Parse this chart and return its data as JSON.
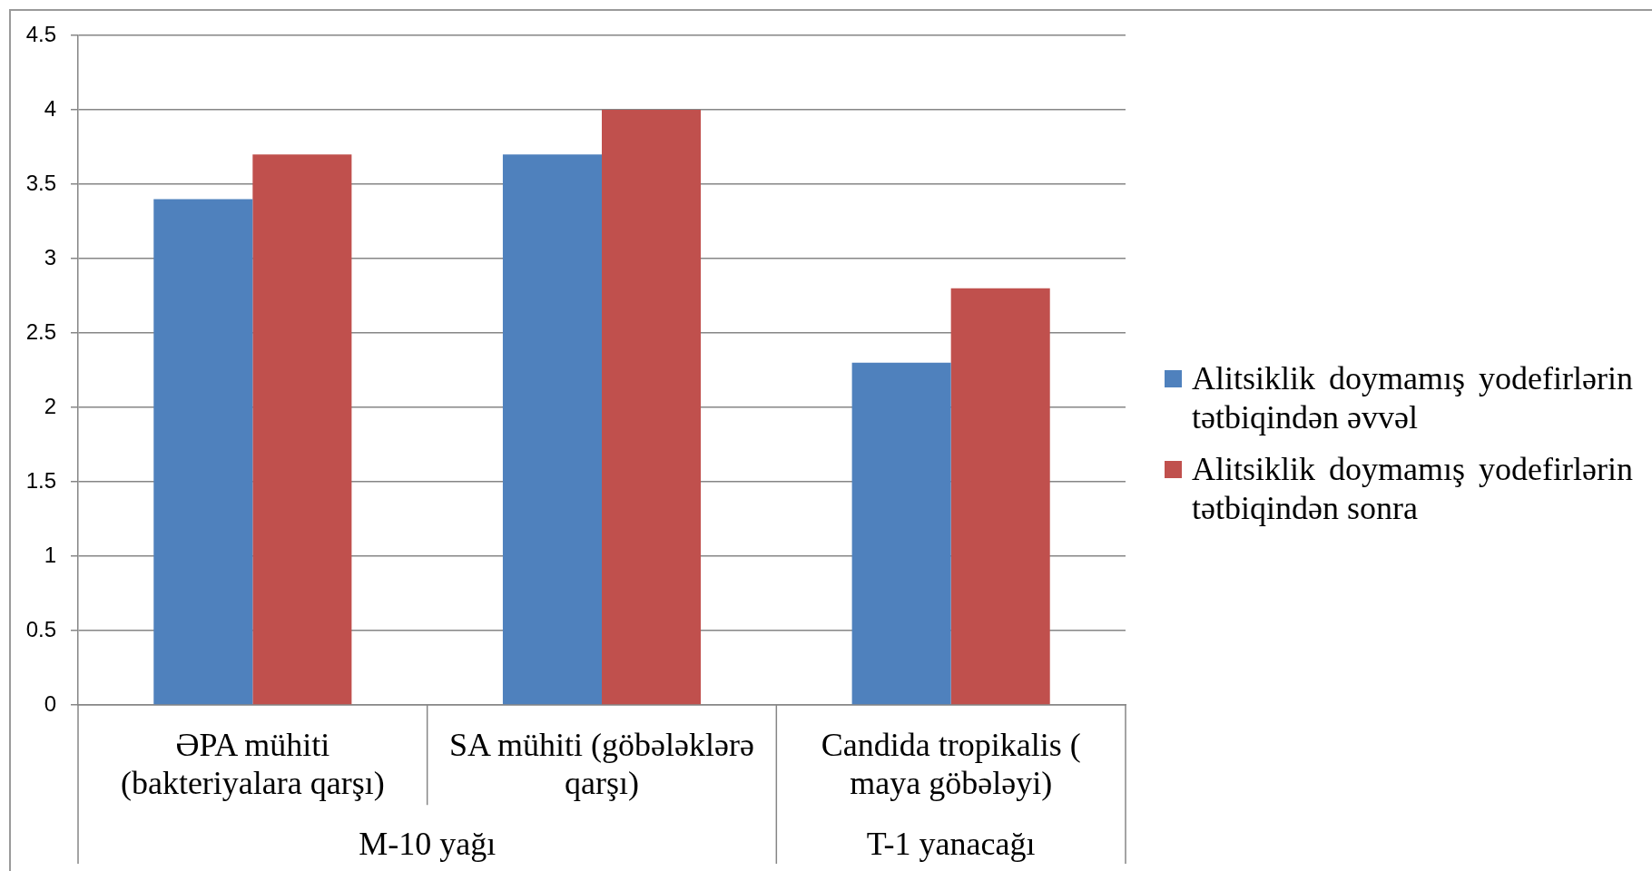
{
  "chart_data": {
    "type": "bar",
    "categories": [
      "ƏPA mühiti (bakteriyalara qarşı)",
      "SA mühiti (göbələklərə qarşı)",
      "Candida tropikalis ( maya göbələyi)"
    ],
    "series": [
      {
        "name": "Alitsiklik doymamış yodefirlərin tətbiqindən əvvəl",
        "color": "#4f81bd",
        "values": [
          3.4,
          3.7,
          2.3
        ]
      },
      {
        "name": "Alitsiklik doymamış yodefirlərin tətbiqindən sonra",
        "color": "#c0504d",
        "values": [
          3.7,
          4.0,
          2.8
        ]
      }
    ],
    "ylim": [
      0,
      4.5
    ],
    "yticks": [
      0,
      0.5,
      1,
      1.5,
      2,
      2.5,
      3,
      3.5,
      4,
      4.5
    ],
    "grid": "y",
    "legend": "right",
    "annotations": [
      "M-10 yağı",
      "T-1 yanacağı"
    ]
  }
}
